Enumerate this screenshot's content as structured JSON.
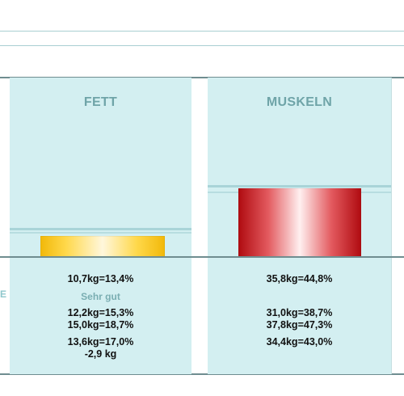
{
  "panels": {
    "fett": {
      "title": "FETT",
      "current": "10,7kg=13,4%",
      "rating": "Sehr gut",
      "ref1": "12,2kg=15,3%",
      "ref2": "15,0kg=18,7%",
      "ref3": "13,6kg=17,0%",
      "diff": "-2,9 kg",
      "bar_color": "#f2b90b"
    },
    "muskeln": {
      "title": "MUSKELN",
      "current": "35,8kg=44,8%",
      "ref1": "31,0kg=38,7%",
      "ref2": "37,8kg=47,3%",
      "ref3": "34,4kg=43,0%",
      "bar_color": "#b10d12"
    }
  },
  "edge_text": "E"
}
